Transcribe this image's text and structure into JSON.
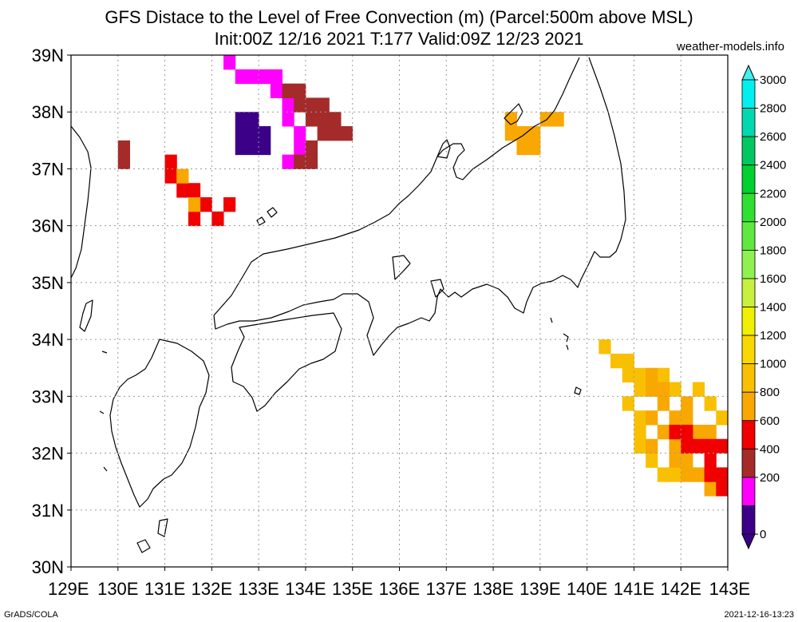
{
  "header": {
    "title_line1": "GFS Distace to the Level of Free Convection (m) (Parcel:500m above MSL)",
    "title_line2": "Init:00Z 12/16 2021 T:177 Valid:09Z 12/23 2021",
    "site": "weather-models.info"
  },
  "footer": {
    "left": "GrADS/COLA",
    "right": "2021-12-16-13:23"
  },
  "map": {
    "lon_range": [
      129,
      143
    ],
    "lat_range": [
      30,
      39
    ],
    "lat_labels": [
      "39N",
      "38N",
      "37N",
      "36N",
      "35N",
      "34N",
      "33N",
      "32N",
      "31N",
      "30N"
    ],
    "lon_labels": [
      "129E",
      "130E",
      "131E",
      "132E",
      "133E",
      "134E",
      "135E",
      "136E",
      "137E",
      "138E",
      "139E",
      "140E",
      "141E",
      "142E",
      "143E"
    ],
    "grid": "dotted, every 1 degree"
  },
  "colorbar": {
    "labels": [
      "3000",
      "2800",
      "2600",
      "2400",
      "2200",
      "2000",
      "1800",
      "1600",
      "1400",
      "1200",
      "1000",
      "800",
      "600",
      "400",
      "200",
      "0"
    ],
    "colors": [
      "#00f0f0",
      "#00d8b0",
      "#00c860",
      "#00d030",
      "#30e030",
      "#60e840",
      "#90f050",
      "#c8f040",
      "#f0f000",
      "#f8d800",
      "#f8c000",
      "#f8a800",
      "#f00000",
      "#a52a2a",
      "#ff00ff",
      "#3c0088"
    ],
    "top_arrow_color": "#40f0f0",
    "bottom_arrow_color": "#3c0088"
  },
  "shaded_regions": [
    {
      "name": "sea-of-japan-west",
      "color": "#a52a2a",
      "cells": [
        [
          37.25,
          130.0
        ],
        [
          37.0,
          130.0
        ]
      ]
    },
    {
      "name": "sea-of-japan-north",
      "color": "#ff00ff",
      "cells": [
        [
          38.75,
          132.25
        ],
        [
          38.5,
          132.5
        ],
        [
          38.5,
          132.75
        ],
        [
          38.5,
          133.0
        ],
        [
          38.5,
          133.25
        ],
        [
          38.25,
          133.25
        ],
        [
          38.0,
          133.5
        ],
        [
          37.75,
          133.5
        ],
        [
          37.5,
          133.75
        ],
        [
          37.25,
          133.75
        ],
        [
          37.0,
          133.5
        ]
      ]
    },
    {
      "name": "sea-of-japan-brown",
      "color": "#a52a2a",
      "cells": [
        [
          38.25,
          133.5
        ],
        [
          38.25,
          133.75
        ],
        [
          38.0,
          133.75
        ],
        [
          38.0,
          134.0
        ],
        [
          37.75,
          134.0
        ],
        [
          37.75,
          134.25
        ],
        [
          37.5,
          134.25
        ],
        [
          37.5,
          134.5
        ],
        [
          37.25,
          134.0
        ],
        [
          37.0,
          134.0
        ],
        [
          37.0,
          133.75
        ],
        [
          38.0,
          134.25
        ],
        [
          37.75,
          134.5
        ],
        [
          37.5,
          134.75
        ]
      ]
    },
    {
      "name": "sea-of-japan-core",
      "color": "#3c0088",
      "cells": [
        [
          37.75,
          132.5
        ],
        [
          37.75,
          132.75
        ],
        [
          37.5,
          132.5
        ],
        [
          37.5,
          132.75
        ],
        [
          37.5,
          133.0
        ],
        [
          37.25,
          132.5
        ],
        [
          37.25,
          132.75
        ],
        [
          37.25,
          133.0
        ]
      ]
    },
    {
      "name": "oki-red",
      "color": "#f00000",
      "cells": [
        [
          37.0,
          131.0
        ],
        [
          36.75,
          131.0
        ],
        [
          36.5,
          131.25
        ],
        [
          36.5,
          131.5
        ],
        [
          36.25,
          131.75
        ],
        [
          36.0,
          131.5
        ],
        [
          36.0,
          132.0
        ],
        [
          36.25,
          132.25
        ]
      ]
    },
    {
      "name": "oki-orange",
      "color": "#f8a800",
      "cells": [
        [
          36.75,
          131.25
        ],
        [
          36.25,
          131.5
        ]
      ]
    },
    {
      "name": "sado-orange",
      "color": "#f8a800",
      "cells": [
        [
          37.75,
          138.25
        ],
        [
          37.5,
          138.25
        ],
        [
          37.5,
          138.5
        ],
        [
          37.5,
          138.75
        ],
        [
          37.25,
          138.5
        ],
        [
          37.25,
          138.75
        ],
        [
          37.75,
          139.0
        ],
        [
          37.75,
          139.25
        ]
      ]
    },
    {
      "name": "pacific-yellow",
      "color": "#f8c000",
      "cells": [
        [
          33.75,
          140.25
        ],
        [
          33.5,
          140.5
        ],
        [
          33.5,
          140.75
        ],
        [
          33.25,
          140.75
        ],
        [
          33.25,
          141.0
        ],
        [
          33.25,
          141.5
        ],
        [
          33.0,
          141.0
        ],
        [
          33.0,
          141.75
        ],
        [
          33.0,
          142.25
        ],
        [
          32.75,
          140.75
        ],
        [
          32.75,
          142.5
        ],
        [
          32.5,
          141.0
        ],
        [
          32.5,
          142.75
        ],
        [
          32.25,
          141.0
        ],
        [
          32.0,
          141.0
        ],
        [
          31.75,
          141.25
        ],
        [
          31.5,
          141.5
        ],
        [
          31.5,
          141.75
        ]
      ]
    },
    {
      "name": "pacific-orange",
      "color": "#f8a800",
      "cells": [
        [
          33.25,
          141.25
        ],
        [
          33.0,
          141.25
        ],
        [
          33.0,
          141.5
        ],
        [
          32.75,
          141.5
        ],
        [
          32.75,
          142.0
        ],
        [
          32.5,
          141.25
        ],
        [
          32.5,
          141.75
        ],
        [
          32.5,
          142.0
        ],
        [
          32.25,
          141.5
        ],
        [
          32.25,
          142.25
        ],
        [
          32.25,
          142.5
        ],
        [
          32.0,
          141.25
        ],
        [
          32.0,
          141.75
        ],
        [
          31.75,
          141.75
        ],
        [
          31.75,
          142.0
        ],
        [
          31.5,
          142.0
        ],
        [
          31.5,
          142.25
        ],
        [
          31.25,
          142.5
        ]
      ]
    },
    {
      "name": "pacific-red",
      "color": "#f00000",
      "cells": [
        [
          32.25,
          141.75
        ],
        [
          32.25,
          142.0
        ],
        [
          32.0,
          142.0
        ],
        [
          32.0,
          142.25
        ],
        [
          32.0,
          142.5
        ],
        [
          32.0,
          142.75
        ],
        [
          31.75,
          142.5
        ],
        [
          31.5,
          142.5
        ],
        [
          31.5,
          142.75
        ],
        [
          31.25,
          142.75
        ]
      ]
    }
  ]
}
